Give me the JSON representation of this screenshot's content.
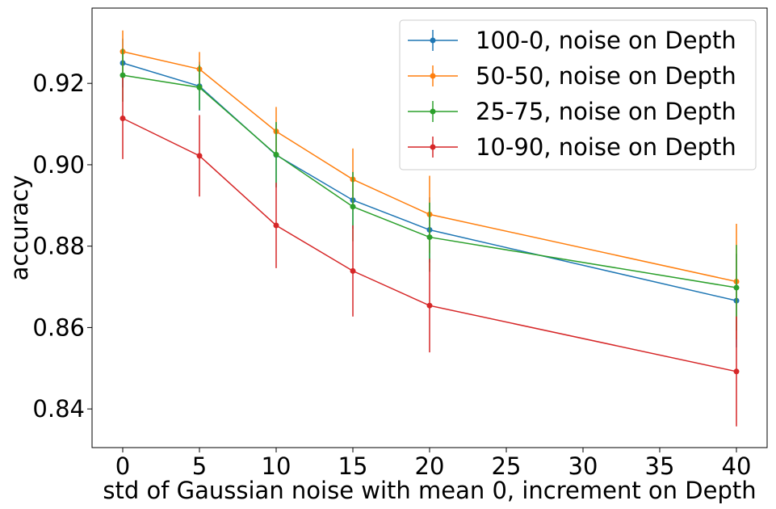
{
  "chart_data": {
    "type": "line",
    "xlabel": "std of Gaussian noise with mean 0, increment on Depth",
    "ylabel": "accuracy",
    "xlim": [
      -2,
      42
    ],
    "ylim": [
      0.8305,
      0.9385
    ],
    "xticks": [
      0,
      5,
      10,
      15,
      20,
      25,
      30,
      35,
      40
    ],
    "yticks": [
      0.84,
      0.86,
      0.88,
      0.9,
      0.92
    ],
    "ytick_labels": [
      "0.84",
      "0.86",
      "0.88",
      "0.90",
      "0.92"
    ],
    "legend_position": "top-right",
    "grid": false,
    "x": [
      0,
      5,
      10,
      15,
      20,
      40
    ],
    "series": [
      {
        "name": "100-0, noise on Depth",
        "color": "#1f77b4",
        "values": [
          0.925,
          0.9193,
          0.9024,
          0.8913,
          0.884,
          0.8666
        ],
        "errors": [
          0.006,
          0.006,
          0.008,
          0.007,
          0.008,
          0.0115
        ]
      },
      {
        "name": "50-50, noise on Depth",
        "color": "#ff7f0e",
        "values": [
          0.9278,
          0.9235,
          0.9082,
          0.8964,
          0.8878,
          0.8713
        ],
        "errors": [
          0.0052,
          0.0042,
          0.006,
          0.0076,
          0.0095,
          0.0142
        ]
      },
      {
        "name": "25-75, noise on Depth",
        "color": "#2ca02c",
        "values": [
          0.922,
          0.919,
          0.9025,
          0.8897,
          0.8822,
          0.8698
        ],
        "errors": [
          0.0065,
          0.0055,
          0.008,
          0.0085,
          0.0085,
          0.0105
        ]
      },
      {
        "name": "10-90, noise on Depth",
        "color": "#d62728",
        "values": [
          0.9114,
          0.9022,
          0.8851,
          0.8739,
          0.8654,
          0.8492
        ],
        "errors": [
          0.01,
          0.01,
          0.0105,
          0.0112,
          0.0115,
          0.0135
        ]
      }
    ]
  }
}
